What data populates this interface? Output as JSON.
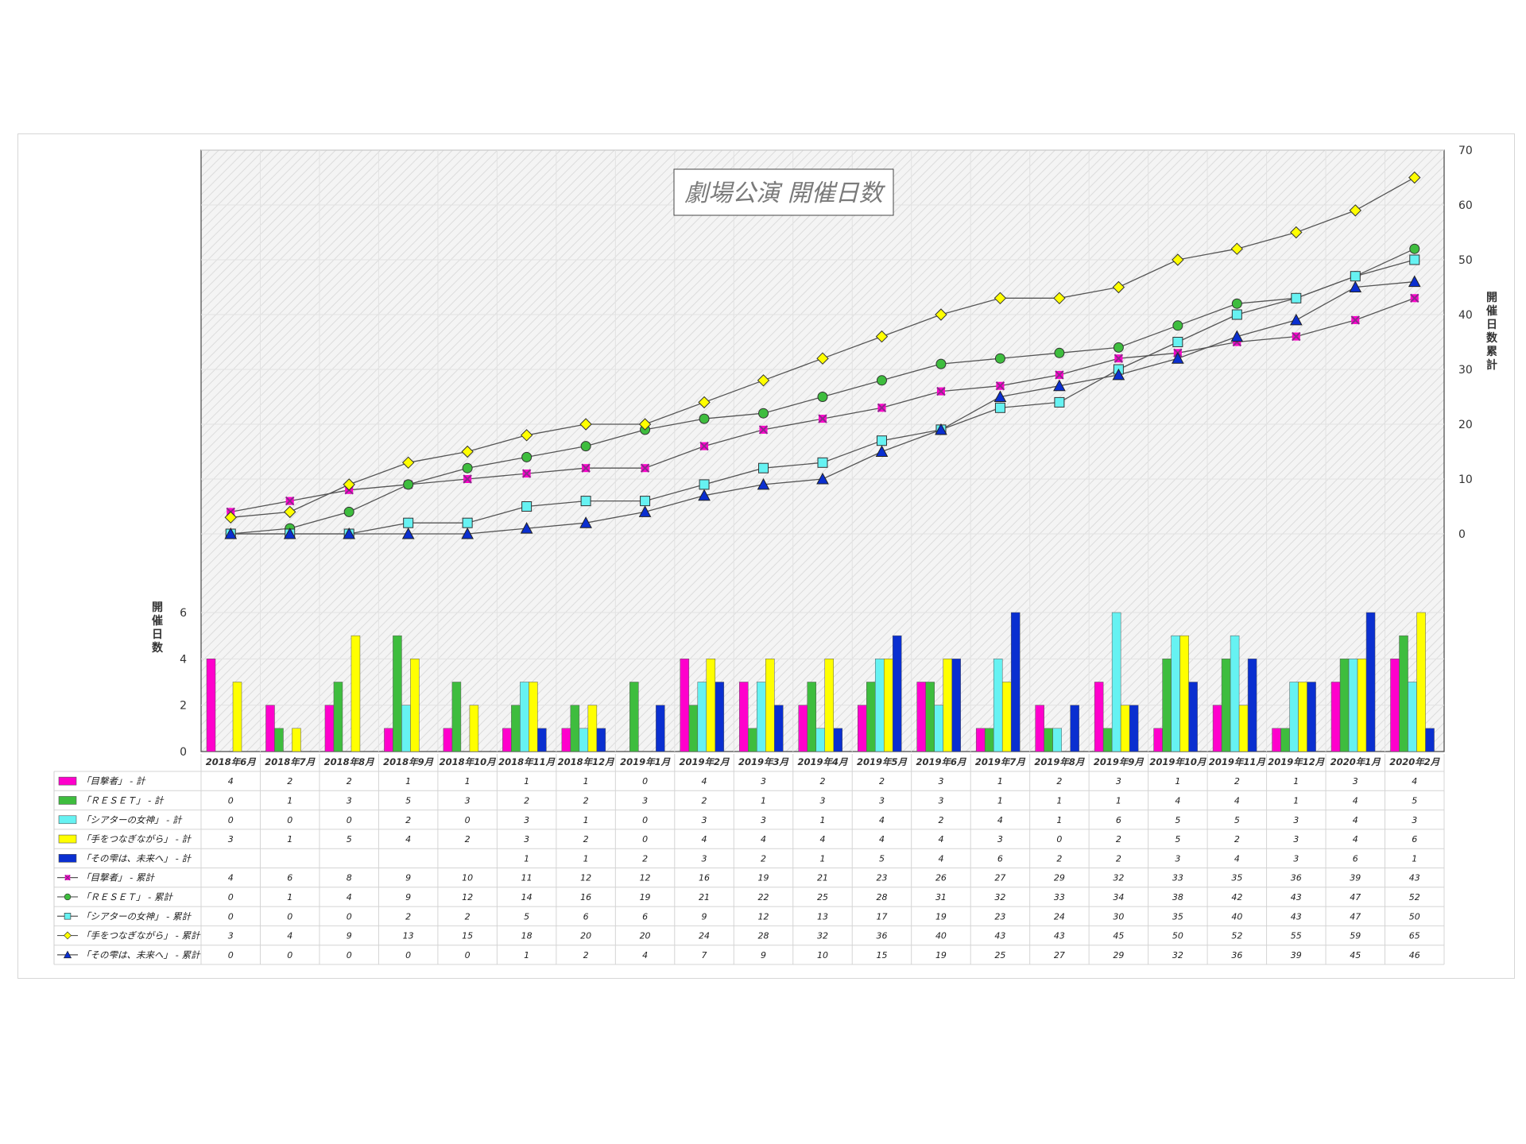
{
  "chart_data": {
    "type": "bar+line",
    "title": "劇場公演 開催日数",
    "categories": [
      "2018年6月",
      "2018年7月",
      "2018年8月",
      "2018年9月",
      "2018年10月",
      "2018年11月",
      "2018年12月",
      "2019年1月",
      "2019年2月",
      "2019年3月",
      "2019年4月",
      "2019年5月",
      "2019年6月",
      "2019年7月",
      "2019年8月",
      "2019年9月",
      "2019年10月",
      "2019年11月",
      "2019年12月",
      "2020年1月",
      "2020年2月"
    ],
    "y_left": {
      "label": "開催日数",
      "ticks": [
        "0",
        "2",
        "4",
        "6"
      ],
      "range": [
        0,
        6
      ]
    },
    "y_right": {
      "label": "開催日数 累計",
      "ticks": [
        "0",
        "10",
        "20",
        "30",
        "40",
        "50",
        "60",
        "70"
      ],
      "range": [
        0,
        70
      ]
    },
    "bar_series": [
      {
        "name": "「目撃者」 - 計",
        "color": "#ff00cc",
        "values": [
          4,
          2,
          2,
          1,
          1,
          1,
          1,
          0,
          4,
          3,
          2,
          2,
          3,
          1,
          2,
          3,
          1,
          2,
          1,
          3,
          4
        ]
      },
      {
        "name": "「ＲＥＳＥＴ」 - 計",
        "color": "#3ebd3e",
        "values": [
          0,
          1,
          3,
          5,
          3,
          2,
          2,
          3,
          2,
          1,
          3,
          3,
          3,
          1,
          1,
          1,
          4,
          4,
          1,
          4,
          5
        ]
      },
      {
        "name": "「シアターの女神」 - 計",
        "color": "#66f2f2",
        "values": [
          0,
          0,
          0,
          2,
          0,
          3,
          1,
          0,
          3,
          3,
          1,
          4,
          2,
          4,
          1,
          6,
          5,
          5,
          3,
          4,
          3
        ]
      },
      {
        "name": "「手をつなぎながら」 - 計",
        "color": "#ffff00",
        "values": [
          3,
          1,
          5,
          4,
          2,
          3,
          2,
          0,
          4,
          4,
          4,
          4,
          4,
          3,
          0,
          2,
          5,
          2,
          3,
          4,
          6
        ]
      },
      {
        "name": "「その雫は、未来へ」 - 計",
        "color": "#0a2fd0",
        "values": [
          null,
          null,
          null,
          null,
          null,
          1,
          1,
          2,
          3,
          2,
          1,
          5,
          4,
          6,
          2,
          2,
          3,
          4,
          3,
          6,
          1
        ]
      }
    ],
    "line_series": [
      {
        "name": "「目撃者」 - 累計",
        "color": "#ff00cc",
        "marker": "x-square",
        "values": [
          4,
          6,
          8,
          9,
          10,
          11,
          12,
          12,
          16,
          19,
          21,
          23,
          26,
          27,
          29,
          32,
          33,
          35,
          36,
          39,
          43
        ]
      },
      {
        "name": "「ＲＥＳＥＴ」 - 累計",
        "color": "#3ebd3e",
        "marker": "circle",
        "values": [
          0,
          1,
          4,
          9,
          12,
          14,
          16,
          19,
          21,
          22,
          25,
          28,
          31,
          32,
          33,
          34,
          38,
          42,
          43,
          47,
          52
        ]
      },
      {
        "name": "「シアターの女神」 - 累計",
        "color": "#66f2f2",
        "marker": "square",
        "values": [
          0,
          0,
          0,
          2,
          2,
          5,
          6,
          6,
          9,
          12,
          13,
          17,
          19,
          23,
          24,
          30,
          35,
          40,
          43,
          47,
          50
        ]
      },
      {
        "name": "「手をつなぎながら」 - 累計",
        "color": "#ffff00",
        "marker": "diamond",
        "values": [
          3,
          4,
          9,
          13,
          15,
          18,
          20,
          20,
          24,
          28,
          32,
          36,
          40,
          43,
          43,
          45,
          50,
          52,
          55,
          59,
          65
        ]
      },
      {
        "name": "「その雫は、未来へ」 - 累計",
        "color": "#0a2fd0",
        "marker": "triangle",
        "values": [
          0,
          0,
          0,
          0,
          0,
          1,
          2,
          4,
          7,
          9,
          10,
          15,
          19,
          25,
          27,
          29,
          32,
          36,
          39,
          45,
          46
        ]
      }
    ],
    "grid": true,
    "data_table": true
  }
}
